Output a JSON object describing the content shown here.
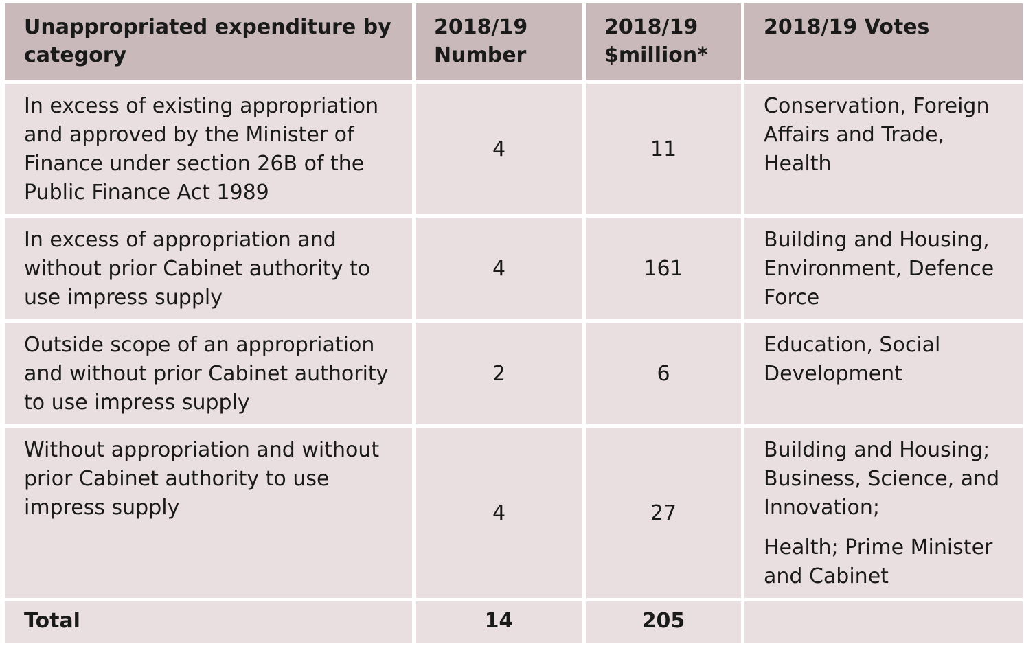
{
  "table": {
    "headers": [
      "Unappropriated expenditure by category",
      "2018/19 Number",
      "2018/19 $million*",
      "2018/19 Votes"
    ],
    "rows": [
      {
        "category": "In excess of existing appropriation and approved by the Minister of Finance under section 26B of the Public Finance Act 1989",
        "number": "4",
        "million": "11",
        "votes": [
          "Conservation, Foreign Affairs and Trade, Health"
        ]
      },
      {
        "category": "In excess of appropriation and without prior Cabinet authority to use impress supply",
        "number": "4",
        "million": "161",
        "votes": [
          "Building and Housing, Environment, Defence Force"
        ]
      },
      {
        "category": "Outside scope of an appropriation and without prior Cabinet authority to use impress supply",
        "number": "2",
        "million": "6",
        "votes": [
          "Education, Social Development"
        ]
      },
      {
        "category": "Without appropriation and without prior Cabinet authority to use impress supply",
        "number": "4",
        "million": "27",
        "votes": [
          "Building and Housing; Business, Science, and Innovation;",
          "Health; Prime Minister and Cabinet"
        ]
      }
    ],
    "total": {
      "label": "Total",
      "number": "14",
      "million": "205",
      "votes": ""
    }
  },
  "colors": {
    "header_bg": "#c9b9ba",
    "cell_bg": "#e9dfe0"
  }
}
